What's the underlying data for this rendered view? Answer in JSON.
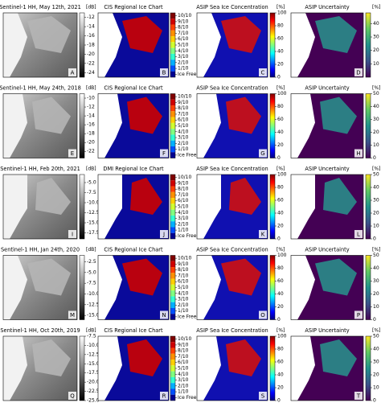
{
  "rows": [
    {
      "panels": [
        {
          "title": "Sentinel-1 HH, May 12th, 2021",
          "letter": "A",
          "unit": "[dB]",
          "lim": [
            -25,
            -11
          ],
          "ticks": [
            -12,
            -14,
            -16,
            -18,
            -20,
            -22,
            -24
          ]
        },
        {
          "title": "CIS Regional Ice Chart",
          "letter": "B",
          "categories": [
            "10/10",
            "9/10",
            "8/10",
            "7/10",
            "6/10",
            "5/10",
            "4/10",
            "3/10",
            "2/10",
            "1/10",
            "Ice Free"
          ]
        },
        {
          "title": "ASIP Sea Ice Concentration",
          "letter": "C",
          "unit": "[%]",
          "lim": [
            0,
            100
          ],
          "ticks": [
            100,
            80,
            60,
            40,
            20,
            0
          ]
        },
        {
          "title": "ASIP Uncertainty",
          "letter": "D",
          "unit": "[%]",
          "lim": [
            0,
            48
          ],
          "ticks": [
            40,
            30,
            20,
            10
          ]
        }
      ]
    },
    {
      "panels": [
        {
          "title": "Sentinel-1 HH, May 24th, 2018",
          "letter": "E",
          "unit": "[dB]",
          "lim": [
            -23.5,
            -9
          ],
          "ticks": [
            -10,
            -12,
            -14,
            -16,
            -18,
            -20,
            -22
          ]
        },
        {
          "title": "CIS Regional Ice Chart",
          "letter": "F",
          "categories": [
            "10/10",
            "9/10",
            "8/10",
            "7/10",
            "6/10",
            "5/10",
            "4/10",
            "3/10",
            "2/10",
            "1/10",
            "Ice Free"
          ]
        },
        {
          "title": "ASIP Sea Ice Concentration",
          "letter": "G",
          "unit": "[%]",
          "lim": [
            0,
            100
          ],
          "ticks": [
            100,
            80,
            60,
            40,
            20,
            0
          ]
        },
        {
          "title": "ASIP Uncertainty",
          "letter": "H",
          "unit": "[%]",
          "lim": [
            0,
            50
          ],
          "ticks": [
            50,
            40,
            30,
            20,
            10,
            0
          ]
        }
      ]
    },
    {
      "panels": [
        {
          "title": "Sentinel-1 HH, Feb 20th, 2021",
          "letter": "I",
          "unit": "[dB]",
          "lim": [
            -19,
            -3
          ],
          "ticks": [
            {
              "value": -5,
              "label": "-5.0"
            },
            -7.5,
            {
              "value": -10,
              "label": "-10.0"
            },
            -12.5,
            {
              "value": -15,
              "label": "-15.0"
            },
            -17.5
          ]
        },
        {
          "title": "DMI Regional Ice Chart",
          "letter": "J",
          "categories": [
            "10/10",
            "9/10",
            "8/10",
            "7/10",
            "6/10",
            "5/10",
            "4/10",
            "3/10",
            "2/10",
            "1/10",
            "Ice Free"
          ]
        },
        {
          "title": "ASIP Sea Ice Concentration",
          "letter": "K",
          "unit": "[%]",
          "lim": [
            0,
            100
          ],
          "ticks": [
            100,
            80,
            60,
            40,
            20,
            0
          ]
        },
        {
          "title": "ASIP Uncertainty",
          "letter": "L",
          "unit": "[%]",
          "lim": [
            0,
            50
          ],
          "ticks": [
            50,
            40,
            30,
            20,
            10,
            0
          ]
        }
      ]
    },
    {
      "panels": [
        {
          "title": "Sentinel-1 HH, Jan 24th, 2020",
          "letter": "M",
          "unit": "[dB]",
          "lim": [
            -16,
            -1
          ],
          "ticks": [
            -2.5,
            {
              "value": -5,
              "label": "-5.0"
            },
            -7.5,
            {
              "value": -10,
              "label": "-10.0"
            },
            -12.5,
            {
              "value": -15,
              "label": "-15.0"
            }
          ]
        },
        {
          "title": "CIS Regional Ice Chart",
          "letter": "N",
          "categories": [
            "10/10",
            "9/10",
            "8/10",
            "7/10",
            "6/10",
            "5/10",
            "4/10",
            "3/10",
            "2/10",
            "1/10",
            "Ice Free"
          ]
        },
        {
          "title": "ASIP Sea Ice Concentration",
          "letter": "O",
          "unit": "[%]",
          "lim": [
            0,
            100
          ],
          "ticks": [
            100,
            80,
            60,
            40,
            20,
            0
          ]
        },
        {
          "title": "ASIP Uncertainty",
          "letter": "P",
          "unit": "[%]",
          "lim": [
            0,
            50
          ],
          "ticks": [
            50,
            40,
            30,
            20,
            10,
            0
          ]
        }
      ]
    },
    {
      "panels": [
        {
          "title": "Sentinel-1 HH, Oct 20th, 2019",
          "letter": "Q",
          "unit": "[dB]",
          "lim": [
            -25,
            -7.5
          ],
          "ticks": [
            -7.5,
            {
              "value": -10,
              "label": "-10.0"
            },
            -12.5,
            {
              "value": -15,
              "label": "-15.0"
            },
            -17.5,
            {
              "value": -20,
              "label": "-20.0"
            },
            -22.5,
            {
              "value": -25,
              "label": "-25.0"
            }
          ]
        },
        {
          "title": "CIS Regional Ice Chart",
          "letter": "R",
          "categories": [
            "10/10",
            "9/10",
            "8/10",
            "7/10",
            "6/10",
            "5/10",
            "4/10",
            "3/10",
            "2/10",
            "1/10",
            "Ice Free"
          ]
        },
        {
          "title": "ASIP Sea Ice Concentration",
          "letter": "S",
          "unit": "[%]",
          "lim": [
            0,
            100
          ],
          "ticks": [
            100,
            80,
            60,
            40,
            20,
            0
          ]
        },
        {
          "title": "ASIP Uncertainty",
          "letter": "T",
          "unit": "[%]",
          "lim": [
            0,
            50
          ],
          "ticks": [
            50,
            40,
            30,
            20,
            10,
            0
          ]
        }
      ]
    }
  ]
}
